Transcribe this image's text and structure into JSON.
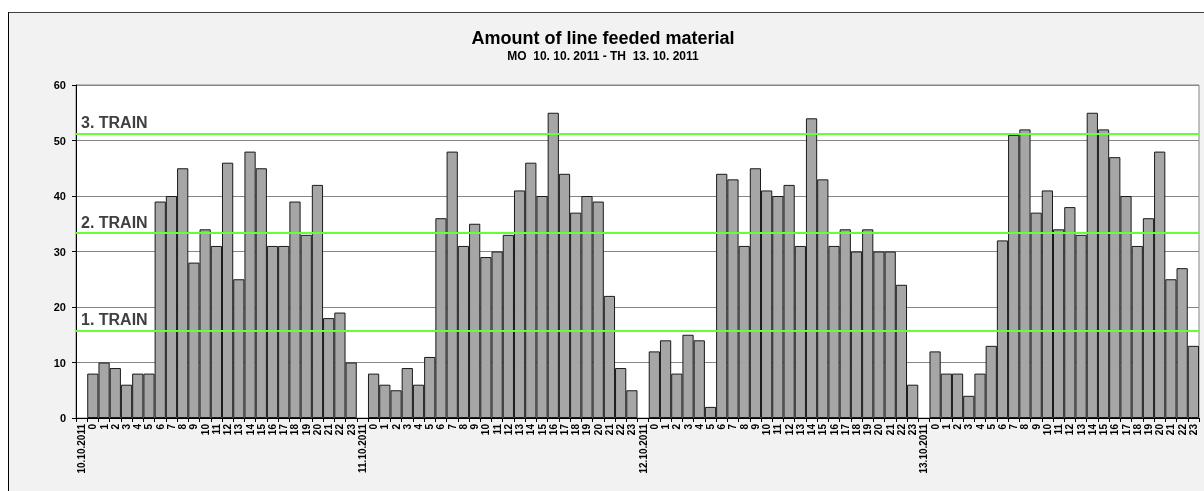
{
  "chart_data": {
    "type": "bar",
    "title": "Amount of line feeded material",
    "subtitle": "MO  10. 10. 2011 - TH  13. 10. 2011",
    "categories": [
      "10.10.2011",
      "0",
      "1",
      "2",
      "3",
      "4",
      "5",
      "6",
      "7",
      "8",
      "9",
      "10",
      "11",
      "12",
      "13",
      "14",
      "15",
      "16",
      "17",
      "18",
      "19",
      "20",
      "21",
      "22",
      "23",
      "11.10.2011",
      "0",
      "1",
      "2",
      "3",
      "4",
      "5",
      "6",
      "7",
      "8",
      "9",
      "10",
      "11",
      "12",
      "13",
      "14",
      "15",
      "16",
      "17",
      "18",
      "19",
      "20",
      "21",
      "22",
      "23",
      "12.10.2011",
      "0",
      "1",
      "2",
      "3",
      "4",
      "5",
      "6",
      "7",
      "8",
      "9",
      "10",
      "11",
      "12",
      "13",
      "14",
      "15",
      "16",
      "17",
      "18",
      "19",
      "20",
      "21",
      "22",
      "23",
      "13.10.2011",
      "0",
      "1",
      "2",
      "3",
      "4",
      "5",
      "6",
      "7",
      "8",
      "9",
      "10",
      "11",
      "12",
      "13",
      "14",
      "15",
      "16",
      "17",
      "18",
      "19",
      "20",
      "21",
      "22",
      "23"
    ],
    "values": [
      null,
      8,
      10,
      9,
      6,
      8,
      8,
      39,
      40,
      45,
      28,
      34,
      31,
      46,
      25,
      48,
      45,
      31,
      31,
      39,
      33,
      42,
      18,
      19,
      10,
      null,
      8,
      6,
      5,
      9,
      6,
      11,
      36,
      48,
      31,
      35,
      29,
      30,
      33,
      41,
      46,
      40,
      55,
      44,
      37,
      40,
      39,
      22,
      9,
      5,
      null,
      12,
      14,
      8,
      15,
      14,
      2,
      44,
      43,
      31,
      45,
      41,
      40,
      42,
      31,
      54,
      43,
      31,
      34,
      30,
      34,
      30,
      30,
      24,
      6,
      null,
      12,
      8,
      8,
      4,
      8,
      13,
      32,
      51,
      52,
      37,
      41,
      34,
      38,
      33,
      55,
      52,
      47,
      40,
      31,
      36,
      48,
      25,
      27,
      13
    ],
    "color": "#a6a6a6",
    "ylim": [
      0,
      60
    ],
    "yticks": [
      0,
      10,
      20,
      30,
      40,
      50,
      60
    ],
    "grid": "y",
    "ref_lines": [
      {
        "axis": "y",
        "value": 51.3,
        "label": "3. TRAIN",
        "color": "#66ff33"
      },
      {
        "axis": "y",
        "value": 33.3,
        "label": "2. TRAIN",
        "color": "#66ff33"
      },
      {
        "axis": "y",
        "value": 15.7,
        "label": "1. TRAIN",
        "color": "#66ff33"
      }
    ]
  }
}
